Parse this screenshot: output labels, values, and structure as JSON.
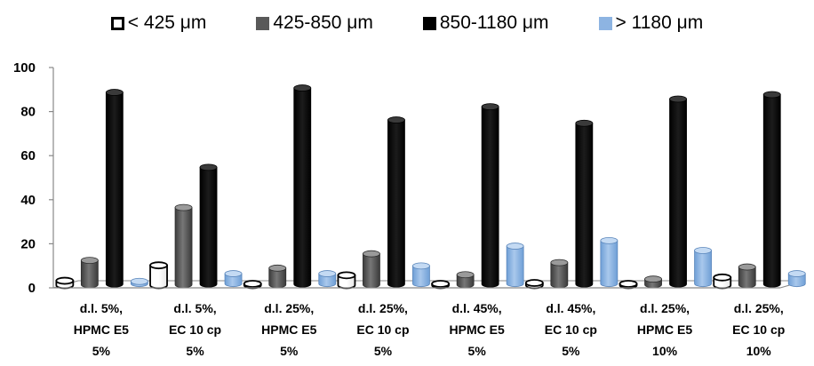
{
  "chart_data": {
    "type": "bar",
    "title": "",
    "xlabel": "",
    "ylabel": "",
    "ylim": [
      0,
      100
    ],
    "yticks": [
      0,
      20,
      40,
      60,
      80,
      100
    ],
    "grid": false,
    "legend_position": "top",
    "categories": [
      [
        "d.l. 5%,",
        "HPMC E5",
        "5%"
      ],
      [
        "d.l. 5%,",
        "EC 10 cp",
        "5%"
      ],
      [
        "d.l. 25%,",
        "HPMC E5",
        "5%"
      ],
      [
        "d.l. 25%,",
        "EC 10 cp",
        "5%"
      ],
      [
        "d.l. 45%,",
        "HPMC E5",
        "5%"
      ],
      [
        "d.l. 45%,",
        "EC 10 cp",
        "5%"
      ],
      [
        "d.l. 25%,",
        "HPMC E5",
        "10%"
      ],
      [
        "d.l. 25%,",
        "EC 10 cp",
        "10%"
      ]
    ],
    "series": [
      {
        "name": "< 425 μm",
        "color": "#ffffff",
        "values": [
          2,
          9,
          0.5,
          4.5,
          0.5,
          1,
          0.5,
          3.5
        ]
      },
      {
        "name": "425-850 μm",
        "color": "#595959",
        "values": [
          11,
          35,
          7.5,
          14,
          4.5,
          10,
          2.5,
          8
        ]
      },
      {
        "name": "850-1180 μm",
        "color": "#000000",
        "values": [
          87,
          53,
          89,
          74.5,
          80.5,
          73,
          84,
          86
        ]
      },
      {
        "name": "> 1180 μm",
        "color": "#8db4e2",
        "values": [
          1,
          4.5,
          4.5,
          8,
          17,
          19.5,
          15,
          4.5
        ]
      }
    ]
  }
}
